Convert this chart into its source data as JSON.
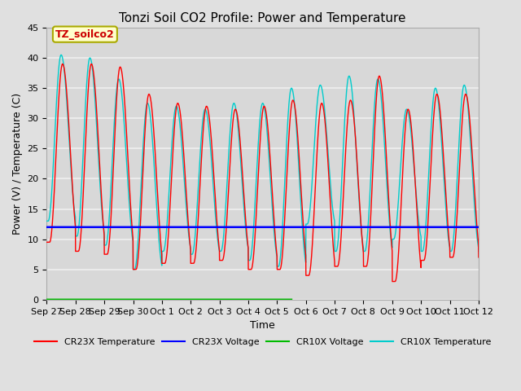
{
  "title": "Tonzi Soil CO2 Profile: Power and Temperature",
  "ylabel": "Power (V) / Temperature (C)",
  "xlabel": "Time",
  "ylim": [
    0,
    45
  ],
  "annotation_text": "TZ_soilco2",
  "cr23x_voltage_value": 12.0,
  "background_color": "#e0e0e0",
  "axes_bg_color": "#d8d8d8",
  "grid_color": "#f0f0f0",
  "title_fontsize": 11,
  "tick_labels": [
    "Sep 27",
    "Sep 28",
    "Sep 29",
    "Sep 30",
    "Oct 1",
    "Oct 2",
    "Oct 3",
    "Oct 4",
    "Oct 5",
    "Oct 6",
    "Oct 7",
    "Oct 8",
    "Oct 9",
    "Oct 10",
    "Oct 11",
    "Oct 12"
  ],
  "n_days": 15,
  "peaks_red": [
    39.0,
    39.0,
    38.5,
    34.0,
    32.5,
    32.0,
    31.5,
    32.0,
    33.0,
    32.5,
    33.0,
    37.0,
    31.5,
    34.0,
    34.0
  ],
  "troughs_red": [
    9.5,
    8.0,
    7.5,
    5.0,
    6.0,
    6.0,
    6.5,
    5.0,
    5.0,
    4.0,
    5.5,
    5.5,
    3.0,
    6.5,
    7.0
  ],
  "peaks_cyan": [
    40.5,
    40.0,
    36.5,
    32.5,
    32.0,
    31.5,
    32.5,
    32.5,
    35.0,
    35.5,
    37.0,
    36.5,
    31.5,
    35.0,
    35.5
  ],
  "troughs_cyan": [
    13.0,
    10.5,
    9.0,
    5.0,
    8.0,
    7.5,
    8.0,
    6.5,
    5.5,
    12.5,
    8.0,
    8.0,
    10.0,
    8.0,
    8.0
  ]
}
